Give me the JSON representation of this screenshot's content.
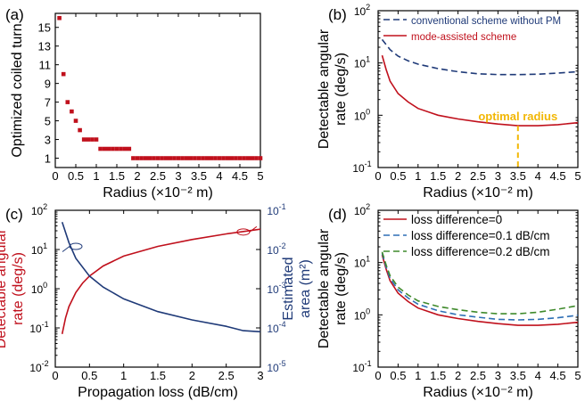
{
  "chart_data": [
    {
      "panel": "(a)",
      "type": "scatter",
      "xlabel": "Radius (×10⁻² m)",
      "ylabel": "Optimized coiled turn",
      "xlim": [
        0,
        5
      ],
      "ylim": [
        0,
        16.5
      ],
      "xticks": [
        "0",
        "0.5",
        "1",
        "1.5",
        "2",
        "2.5",
        "3",
        "3.5",
        "4",
        "4.5",
        "5"
      ],
      "yticks": [
        "1",
        "3",
        "5",
        "7",
        "9",
        "11",
        "13",
        "15"
      ],
      "color": "#c0101c",
      "points": [
        [
          0.1,
          16
        ],
        [
          0.2,
          10
        ],
        [
          0.3,
          7
        ],
        [
          0.4,
          6
        ],
        [
          0.5,
          5
        ],
        [
          0.6,
          4
        ],
        [
          0.7,
          3
        ],
        [
          0.8,
          3
        ],
        [
          0.9,
          3
        ],
        [
          1.0,
          3
        ],
        [
          1.1,
          2
        ],
        [
          1.2,
          2
        ],
        [
          1.3,
          2
        ],
        [
          1.4,
          2
        ],
        [
          1.5,
          2
        ],
        [
          1.6,
          2
        ],
        [
          1.7,
          2
        ],
        [
          1.8,
          2
        ],
        [
          1.9,
          1
        ],
        [
          2.0,
          1
        ],
        [
          2.1,
          1
        ],
        [
          2.2,
          1
        ],
        [
          2.3,
          1
        ],
        [
          2.4,
          1
        ],
        [
          2.5,
          1
        ],
        [
          2.6,
          1
        ],
        [
          2.7,
          1
        ],
        [
          2.8,
          1
        ],
        [
          2.9,
          1
        ],
        [
          3.0,
          1
        ],
        [
          3.1,
          1
        ],
        [
          3.2,
          1
        ],
        [
          3.3,
          1
        ],
        [
          3.4,
          1
        ],
        [
          3.5,
          1
        ],
        [
          3.6,
          1
        ],
        [
          3.7,
          1
        ],
        [
          3.8,
          1
        ],
        [
          3.9,
          1
        ],
        [
          4.0,
          1
        ],
        [
          4.1,
          1
        ],
        [
          4.2,
          1
        ],
        [
          4.3,
          1
        ],
        [
          4.4,
          1
        ],
        [
          4.5,
          1
        ],
        [
          4.6,
          1
        ],
        [
          4.7,
          1
        ],
        [
          4.8,
          1
        ],
        [
          4.9,
          1
        ],
        [
          5.0,
          1
        ]
      ]
    },
    {
      "panel": "(b)",
      "type": "line",
      "yscale": "log",
      "xlabel": "Radius (×10⁻² m)",
      "ylabel": "Detectable angular rate (deg/s)",
      "xlim": [
        0,
        5
      ],
      "ylim": [
        0.1,
        100
      ],
      "xticks": [
        "0",
        "0.5",
        "1",
        "1.5",
        "2",
        "2.5",
        "3",
        "3.5",
        "4",
        "4.5",
        "5"
      ],
      "yticks": [
        {
          "v": 100,
          "base": "10",
          "exp": "2"
        },
        {
          "v": 10,
          "base": "10",
          "exp": "1"
        },
        {
          "v": 1,
          "base": "10",
          "exp": "0"
        },
        {
          "v": 0.1,
          "base": "10",
          "exp": "-1"
        }
      ],
      "series": [
        {
          "name": "conventional scheme without PM",
          "color": "#1f3a78",
          "dash": "7,4",
          "x": [
            0.1,
            0.3,
            0.5,
            0.75,
            1.0,
            1.5,
            2.0,
            2.5,
            3.0,
            3.5,
            4.0,
            4.5,
            5.0
          ],
          "y": [
            28,
            18,
            13.5,
            11,
            9.5,
            7.8,
            6.8,
            6.2,
            6.0,
            6.0,
            6.1,
            6.4,
            6.8
          ]
        },
        {
          "name": "mode-assisted scheme",
          "color": "#c0101c",
          "dash": "",
          "x": [
            0.1,
            0.2,
            0.3,
            0.5,
            0.75,
            1.0,
            1.5,
            2.0,
            2.5,
            3.0,
            3.5,
            4.0,
            4.5,
            5.0
          ],
          "y": [
            14,
            7.5,
            4.5,
            2.6,
            1.8,
            1.35,
            1.0,
            0.85,
            0.75,
            0.68,
            0.63,
            0.63,
            0.66,
            0.72
          ]
        }
      ],
      "annotation": {
        "text": "optimal radius",
        "x": 3.5,
        "color": "#f2b705"
      }
    },
    {
      "panel": "(c)",
      "type": "line",
      "yscale": "log",
      "xlabel": "Propagation loss (dB/cm)",
      "ylabel": "Detectable angular rate (deg/s)",
      "ylabel_right": "Estimated area (m²)",
      "xlim": [
        0,
        3
      ],
      "ylim": [
        0.01,
        100
      ],
      "ylim_right": [
        1e-05,
        0.1
      ],
      "xticks": [
        "0",
        "0.5",
        "1",
        "1.5",
        "2",
        "2.5",
        "3"
      ],
      "yticks": [
        {
          "v": 100,
          "base": "10",
          "exp": "2"
        },
        {
          "v": 10,
          "base": "10",
          "exp": "1"
        },
        {
          "v": 1,
          "base": "10",
          "exp": "0"
        },
        {
          "v": 0.1,
          "base": "10",
          "exp": "-1"
        },
        {
          "v": 0.01,
          "base": "10",
          "exp": "-2"
        }
      ],
      "yticks_right": [
        {
          "v": 0.1,
          "base": "10",
          "exp": "-1"
        },
        {
          "v": 0.01,
          "base": "10",
          "exp": "-2"
        },
        {
          "v": 0.001,
          "base": "10",
          "exp": "-3"
        },
        {
          "v": 0.0001,
          "base": "10",
          "exp": "-4"
        },
        {
          "v": 1e-05,
          "base": "10",
          "exp": "-5"
        }
      ],
      "series": [
        {
          "name": "detectable angular rate",
          "axis": "left",
          "color": "#c0101c",
          "x": [
            0.1,
            0.15,
            0.2,
            0.3,
            0.4,
            0.5,
            0.7,
            1.0,
            1.5,
            2.0,
            2.5,
            3.0
          ],
          "y": [
            0.07,
            0.18,
            0.35,
            0.8,
            1.4,
            2.1,
            3.8,
            6.8,
            12,
            18,
            25,
            33
          ]
        },
        {
          "name": "estimated area",
          "axis": "right",
          "color": "#1f3a78",
          "x": [
            0.1,
            0.2,
            0.3,
            0.5,
            0.7,
            1.0,
            1.5,
            2.0,
            2.5,
            2.75,
            3.0
          ],
          "y": [
            0.05,
            0.015,
            0.006,
            0.0021,
            0.0011,
            0.00055,
            0.00026,
            0.00016,
            0.00011,
            8.5e-05,
            8e-05
          ]
        }
      ]
    },
    {
      "panel": "(d)",
      "type": "line",
      "yscale": "log",
      "xlabel": "Radius (×10⁻² m)",
      "ylabel": "Detectable angular rate (deg/s)",
      "xlim": [
        0,
        5
      ],
      "ylim": [
        0.1,
        100
      ],
      "xticks": [
        "0",
        "0.5",
        "1",
        "1.5",
        "2",
        "2.5",
        "3",
        "3.5",
        "4",
        "4.5",
        "5"
      ],
      "yticks": [
        {
          "v": 100,
          "base": "10",
          "exp": "2"
        },
        {
          "v": 10,
          "base": "10",
          "exp": "1"
        },
        {
          "v": 1,
          "base": "10",
          "exp": "0"
        },
        {
          "v": 0.1,
          "base": "10",
          "exp": "-1"
        }
      ],
      "series": [
        {
          "name": "loss difference=0",
          "color": "#c0101c",
          "dash": "",
          "x": [
            0.1,
            0.2,
            0.3,
            0.5,
            0.75,
            1.0,
            1.5,
            2.0,
            2.5,
            3.0,
            3.5,
            4.0,
            4.5,
            5.0
          ],
          "y": [
            14,
            7.5,
            4.5,
            2.6,
            1.8,
            1.35,
            1.0,
            0.85,
            0.75,
            0.68,
            0.63,
            0.63,
            0.66,
            0.72
          ]
        },
        {
          "name": "loss difference=0.1 dB/cm",
          "color": "#2e6fb5",
          "dash": "7,4",
          "x": [
            0.1,
            0.2,
            0.3,
            0.5,
            0.75,
            1.0,
            1.5,
            2.0,
            2.5,
            3.0,
            3.5,
            4.0,
            4.5,
            5.0
          ],
          "y": [
            15,
            8.2,
            5.0,
            3.0,
            2.1,
            1.6,
            1.2,
            1.0,
            0.9,
            0.82,
            0.8,
            0.82,
            0.88,
            0.98
          ]
        },
        {
          "name": "loss difference=0.2 dB/cm",
          "color": "#3f8a2b",
          "dash": "7,4",
          "x": [
            0.1,
            0.2,
            0.3,
            0.5,
            0.75,
            1.0,
            1.5,
            2.0,
            2.5,
            3.0,
            3.5,
            4.0,
            4.5,
            5.0
          ],
          "y": [
            16,
            9.0,
            5.6,
            3.4,
            2.4,
            1.85,
            1.45,
            1.25,
            1.12,
            1.05,
            1.05,
            1.12,
            1.28,
            1.5
          ]
        }
      ]
    }
  ]
}
